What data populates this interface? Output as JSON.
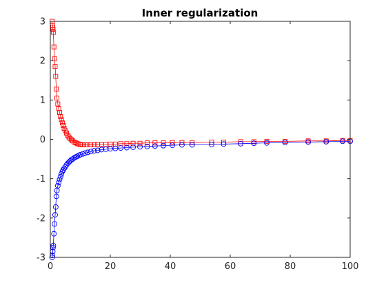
{
  "chart_data": {
    "type": "line",
    "title": "Inner regularization",
    "xlabel": "",
    "ylabel": "",
    "xlim": [
      0,
      100
    ],
    "ylim": [
      -3,
      3
    ],
    "xticks": [
      0,
      20,
      40,
      60,
      80,
      100
    ],
    "yticks": [
      -3,
      -2,
      -1,
      0,
      1,
      2,
      3
    ],
    "grid": false,
    "legend": "none",
    "series": [
      {
        "marker": "square",
        "color": "#ff0000",
        "x": [
          0.6,
          0.7,
          0.8,
          0.9,
          1.0,
          1.2,
          1.4,
          1.6,
          1.8,
          2.0,
          2.2,
          2.5,
          2.8,
          3.1,
          3.4,
          3.7,
          4.0,
          4.3,
          4.6,
          5.0,
          5.4,
          5.8,
          6.2,
          6.6,
          7.0,
          7.5,
          8.0,
          8.5,
          9.0,
          9.5,
          10.0,
          10.8,
          11.6,
          12.5,
          13.5,
          14.6,
          15.8,
          17.1,
          18.5,
          20.0,
          21.7,
          23.5,
          25.5,
          27.6,
          29.9,
          32.3,
          34.9,
          37.7,
          40.7,
          43.9,
          47.3,
          53.8,
          57.8,
          63.5,
          67.9,
          72.2,
          78.3,
          86.0,
          92.0,
          97.5,
          100.0
        ],
        "y": [
          3.0,
          2.9,
          2.85,
          2.8,
          2.72,
          2.35,
          2.05,
          1.85,
          1.6,
          1.28,
          1.05,
          0.9,
          0.78,
          0.68,
          0.58,
          0.5,
          0.42,
          0.35,
          0.28,
          0.22,
          0.16,
          0.1,
          0.06,
          0.02,
          -0.01,
          -0.04,
          -0.07,
          -0.09,
          -0.11,
          -0.12,
          -0.13,
          -0.14,
          -0.14,
          -0.14,
          -0.14,
          -0.14,
          -0.13,
          -0.13,
          -0.13,
          -0.12,
          -0.12,
          -0.11,
          -0.11,
          -0.1,
          -0.1,
          -0.09,
          -0.09,
          -0.09,
          -0.08,
          -0.08,
          -0.08,
          -0.07,
          -0.07,
          -0.06,
          -0.06,
          -0.05,
          -0.05,
          -0.04,
          -0.04,
          -0.03,
          -0.03
        ]
      },
      {
        "marker": "circle",
        "color": "#0000ff",
        "x": [
          0.6,
          0.7,
          0.8,
          0.9,
          1.0,
          1.2,
          1.4,
          1.6,
          1.8,
          2.0,
          2.2,
          2.5,
          2.8,
          3.1,
          3.4,
          3.7,
          4.0,
          4.3,
          4.6,
          5.0,
          5.4,
          5.8,
          6.2,
          6.6,
          7.0,
          7.5,
          8.0,
          8.5,
          9.0,
          9.5,
          10.0,
          10.8,
          11.6,
          12.5,
          13.5,
          14.6,
          15.8,
          17.1,
          18.5,
          20.0,
          21.7,
          23.5,
          25.5,
          27.6,
          29.9,
          32.3,
          34.9,
          37.7,
          40.7,
          43.9,
          47.3,
          53.8,
          57.8,
          63.5,
          67.9,
          72.2,
          78.3,
          86.0,
          92.0,
          97.5,
          100.0
        ],
        "y": [
          -3.0,
          -2.95,
          -2.85,
          -2.75,
          -2.7,
          -2.4,
          -2.15,
          -1.92,
          -1.72,
          -1.45,
          -1.3,
          -1.18,
          -1.1,
          -1.02,
          -0.95,
          -0.88,
          -0.82,
          -0.78,
          -0.74,
          -0.7,
          -0.65,
          -0.61,
          -0.58,
          -0.55,
          -0.52,
          -0.5,
          -0.47,
          -0.45,
          -0.43,
          -0.41,
          -0.39,
          -0.37,
          -0.35,
          -0.33,
          -0.31,
          -0.29,
          -0.28,
          -0.26,
          -0.25,
          -0.24,
          -0.23,
          -0.22,
          -0.21,
          -0.2,
          -0.19,
          -0.18,
          -0.17,
          -0.16,
          -0.15,
          -0.14,
          -0.14,
          -0.13,
          -0.12,
          -0.11,
          -0.1,
          -0.09,
          -0.08,
          -0.07,
          -0.06,
          -0.05,
          -0.05
        ]
      }
    ]
  }
}
